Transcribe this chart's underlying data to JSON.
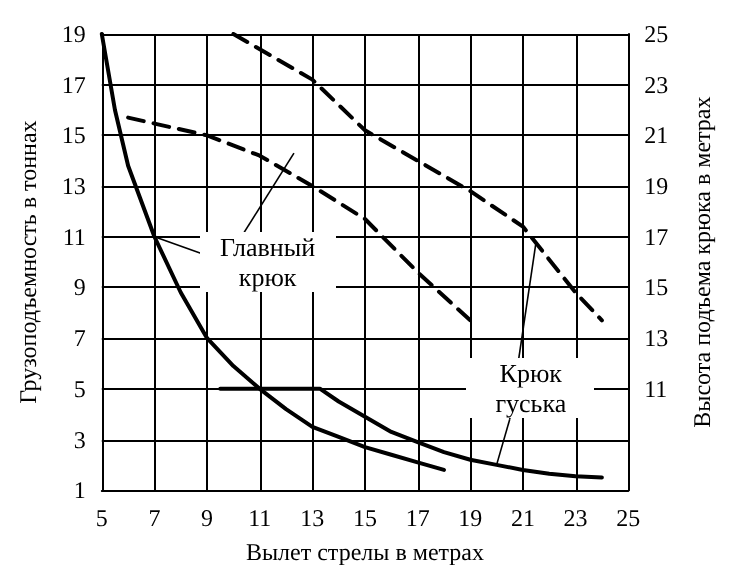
{
  "chart_data": {
    "type": "line",
    "xlabel": "Вылет стрелы в метрах",
    "ylabel": "Грузоподъемность в тоннах",
    "y2label": "Высота подъема крюка в метрах",
    "xlim": [
      5,
      25
    ],
    "xticks": [
      5,
      7,
      9,
      11,
      13,
      15,
      17,
      19,
      21,
      23,
      25
    ],
    "ylim": [
      1,
      19
    ],
    "yticks": [
      1,
      3,
      5,
      7,
      9,
      11,
      13,
      15,
      17,
      19
    ],
    "y2lim": [
      7,
      25
    ],
    "y2ticks": [
      11,
      13,
      15,
      17,
      19,
      21,
      23,
      25
    ],
    "grid": true,
    "marker": "none",
    "series": [
      {
        "color": "#000000",
        "line_style": "solid",
        "x": [
          5,
          5.5,
          6,
          7,
          8,
          9,
          10,
          11,
          12,
          13,
          14,
          15,
          16,
          17,
          18
        ],
        "values": [
          19,
          16,
          13.8,
          11,
          8.8,
          7,
          5.9,
          5,
          4.2,
          3.5,
          3.1,
          2.7,
          2.4,
          2.1,
          1.8
        ]
      },
      {
        "color": "#000000",
        "line_style": "solid",
        "x": [
          9.5,
          13.3,
          14,
          15,
          16,
          17,
          18,
          19,
          20,
          21,
          22,
          23,
          24
        ],
        "values": [
          5,
          5,
          4.5,
          3.9,
          3.3,
          2.9,
          2.5,
          2.2,
          2,
          1.8,
          1.65,
          1.55,
          1.5
        ]
      },
      {
        "color": "#000000",
        "line_style": "dashed",
        "axis": "y2",
        "x": [
          6,
          9,
          11,
          13,
          15,
          17,
          19
        ],
        "values": [
          21.7,
          21,
          20.2,
          19,
          17.7,
          15.6,
          13.7
        ]
      },
      {
        "color": "#000000",
        "line_style": "dashed",
        "axis": "y2",
        "x": [
          10,
          13,
          15,
          17,
          19,
          21,
          23,
          24
        ],
        "values": [
          25,
          23.2,
          21.2,
          20,
          18.8,
          17.4,
          14.8,
          13.7
        ]
      }
    ],
    "annotations": [
      {
        "text": "Главный крюк",
        "x": 7,
        "y": 11
      },
      {
        "text": "Крюк гуська",
        "x": 20,
        "y": 2
      }
    ]
  }
}
